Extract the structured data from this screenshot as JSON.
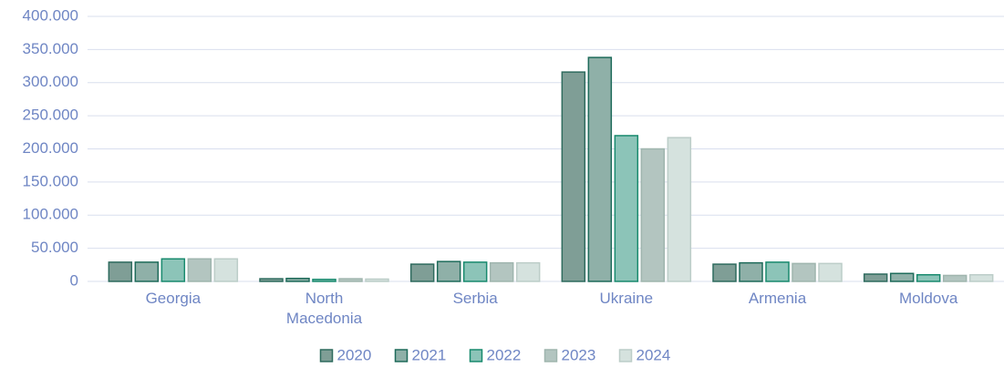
{
  "chart_data": {
    "type": "bar",
    "categories": [
      "Georgia",
      "North Macedonia",
      "Serbia",
      "Ukraine",
      "Armenia",
      "Moldova"
    ],
    "series": [
      {
        "name": "2020",
        "color": "#7f9e96",
        "stroke": "#2e6b5e",
        "values": [
          29000,
          4000,
          26000,
          316000,
          26000,
          11000
        ]
      },
      {
        "name": "2021",
        "color": "#8fb0a8",
        "stroke": "#1e6b5a",
        "values": [
          29000,
          4500,
          30000,
          338000,
          28000,
          12000
        ]
      },
      {
        "name": "2022",
        "color": "#8cc4b8",
        "stroke": "#188a6e",
        "values": [
          34000,
          3000,
          29000,
          220000,
          29000,
          10000
        ]
      },
      {
        "name": "2023",
        "color": "#b3c5c0",
        "stroke": "#9fb5ae",
        "values": [
          34000,
          4000,
          28000,
          200000,
          27000,
          9000
        ]
      },
      {
        "name": "2024",
        "color": "#d5e2de",
        "stroke": "#bccdc8",
        "values": [
          34000,
          3500,
          28000,
          217000,
          27000,
          10000
        ]
      }
    ],
    "ylim": [
      0,
      400000
    ],
    "yticks": [
      0,
      {
        "value": 50000,
        "label": "50.000"
      },
      {
        "value": 100000,
        "label": "100.000"
      },
      {
        "value": 150000,
        "label": "150.000"
      },
      {
        "value": 200000,
        "label": "200.000"
      },
      {
        "value": 250000,
        "label": "250.000"
      },
      {
        "value": 300000,
        "label": "300.000"
      },
      {
        "value": 350000,
        "label": "350.000"
      },
      {
        "value": 400000,
        "label": "400.000"
      }
    ],
    "grid": true,
    "legend": "bottom"
  }
}
